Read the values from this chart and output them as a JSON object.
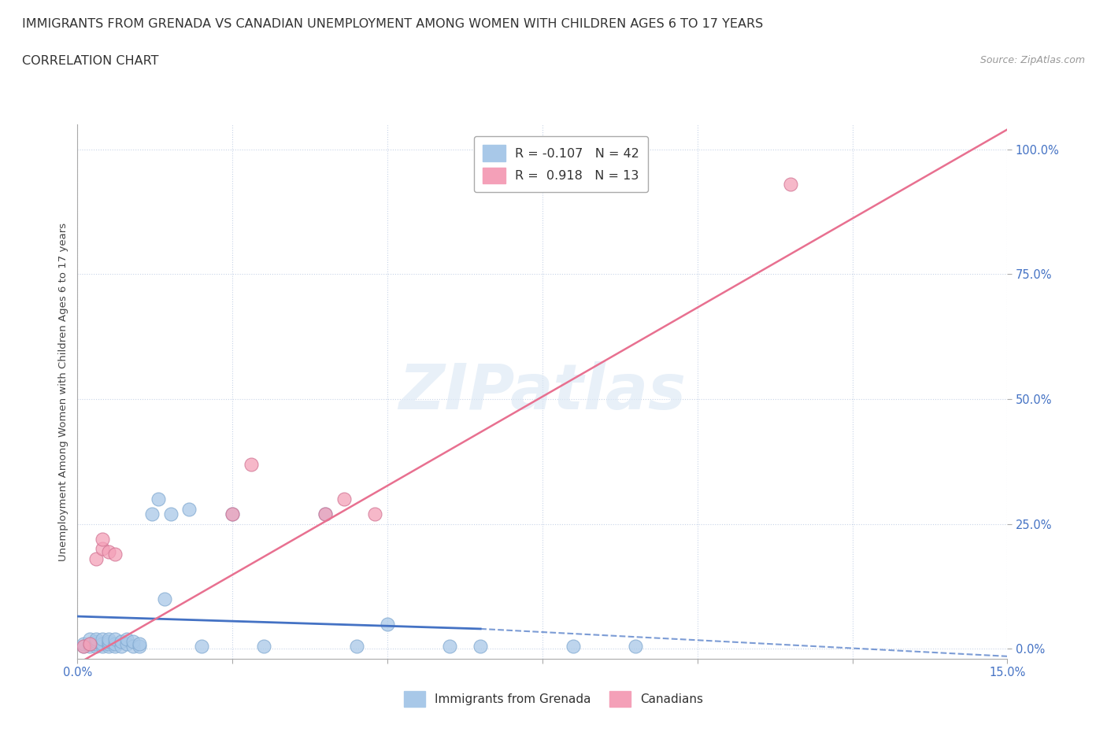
{
  "title": "IMMIGRANTS FROM GRENADA VS CANADIAN UNEMPLOYMENT AMONG WOMEN WITH CHILDREN AGES 6 TO 17 YEARS",
  "subtitle": "CORRELATION CHART",
  "source": "Source: ZipAtlas.com",
  "ylabel": "Unemployment Among Women with Children Ages 6 to 17 years",
  "xlim": [
    0.0,
    0.15
  ],
  "ylim": [
    -0.02,
    1.05
  ],
  "yaxis_min_display": 0.0,
  "yaxis_max_display": 1.0,
  "xticks": [
    0.0,
    0.025,
    0.05,
    0.075,
    0.1,
    0.125,
    0.15
  ],
  "yticks": [
    0.0,
    0.25,
    0.5,
    0.75,
    1.0
  ],
  "blue_scatter_x": [
    0.001,
    0.001,
    0.002,
    0.002,
    0.002,
    0.003,
    0.003,
    0.003,
    0.003,
    0.004,
    0.004,
    0.004,
    0.005,
    0.005,
    0.005,
    0.005,
    0.006,
    0.006,
    0.006,
    0.007,
    0.007,
    0.008,
    0.008,
    0.009,
    0.009,
    0.01,
    0.01,
    0.012,
    0.013,
    0.014,
    0.015,
    0.018,
    0.02,
    0.025,
    0.03,
    0.04,
    0.045,
    0.05,
    0.06,
    0.065,
    0.08,
    0.09
  ],
  "blue_scatter_y": [
    0.005,
    0.01,
    0.005,
    0.01,
    0.02,
    0.005,
    0.01,
    0.015,
    0.02,
    0.005,
    0.01,
    0.02,
    0.005,
    0.01,
    0.015,
    0.02,
    0.005,
    0.01,
    0.02,
    0.005,
    0.015,
    0.01,
    0.02,
    0.005,
    0.015,
    0.005,
    0.01,
    0.27,
    0.3,
    0.1,
    0.27,
    0.28,
    0.005,
    0.27,
    0.005,
    0.27,
    0.005,
    0.05,
    0.005,
    0.005,
    0.005,
    0.005
  ],
  "pink_scatter_x": [
    0.001,
    0.002,
    0.003,
    0.004,
    0.004,
    0.005,
    0.006,
    0.025,
    0.028,
    0.04,
    0.043,
    0.048,
    0.115
  ],
  "pink_scatter_y": [
    0.005,
    0.01,
    0.18,
    0.2,
    0.22,
    0.195,
    0.19,
    0.27,
    0.37,
    0.27,
    0.3,
    0.27,
    0.93
  ],
  "blue_trend_x": [
    0.0,
    0.065,
    0.15
  ],
  "blue_trend_y": [
    0.065,
    0.04,
    -0.015
  ],
  "pink_trend_x": [
    0.0,
    0.15
  ],
  "pink_trend_y": [
    -0.03,
    1.04
  ],
  "blue_color": "#a8c8e8",
  "pink_color": "#f4a0b8",
  "blue_line_color": "#4472c4",
  "pink_line_color": "#e87090",
  "legend_r1": "R = -0.107   N = 42",
  "legend_r2": "R =  0.918   N = 13",
  "watermark_text": "ZIPatlas",
  "background_color": "#ffffff",
  "grid_color": "#c8d4e8",
  "text_color_blue": "#4472c4",
  "title_fontsize": 11.5,
  "subtitle_fontsize": 11.5,
  "axis_label_fontsize": 9.5,
  "tick_fontsize": 10.5
}
